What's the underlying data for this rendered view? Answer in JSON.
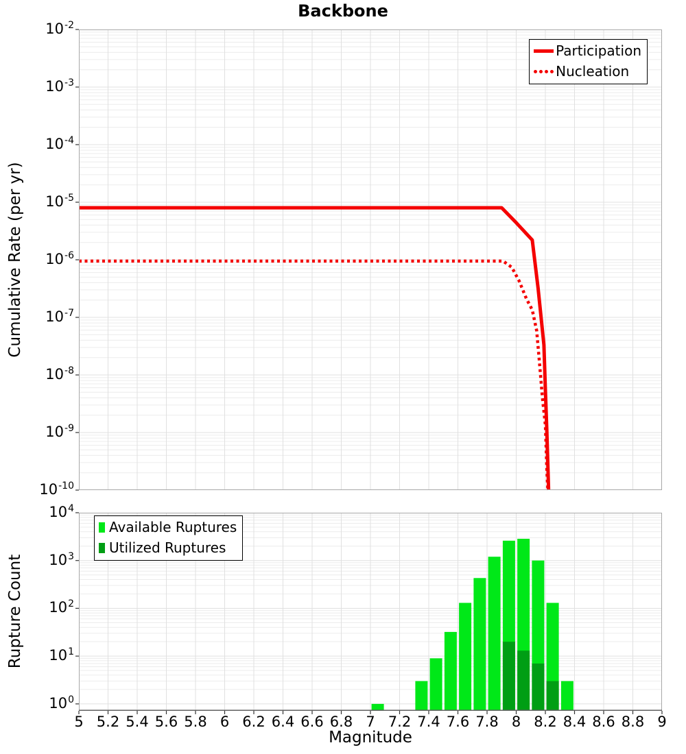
{
  "title": "Backbone",
  "colors": {
    "line_red": "#f40000",
    "available_green": "#00e818",
    "utilized_green": "#009e14",
    "grid_major": "#e0e0e0",
    "grid_minor": "#ececec",
    "plot_border": "#a8a8a8",
    "axis_line": "#606060",
    "tick": "#333333"
  },
  "chart_data": [
    {
      "type": "line",
      "title": "Backbone",
      "xlabel": "",
      "ylabel": "Cumulative Rate (per yr)",
      "xlim": [
        5,
        9
      ],
      "ylim": [
        1e-10,
        0.01
      ],
      "yscale": "log",
      "grid": "major+minor horizontal, vertical every 0.2 magnitude",
      "y_tick_exponents": [
        -2,
        -3,
        -4,
        -5,
        -6,
        -7,
        -8,
        -9,
        -10
      ],
      "legend": {
        "position": "top-right",
        "entries": [
          {
            "label": "Participation",
            "style": "solid",
            "color": "#f40000"
          },
          {
            "label": "Nucleation",
            "style": "dotted",
            "color": "#f40000"
          }
        ]
      },
      "series": [
        {
          "name": "Participation",
          "style": "solid",
          "color": "#f40000",
          "points": [
            [
              5.0,
              8e-06
            ],
            [
              7.9,
              8e-06
            ],
            [
              8.0,
              4.4e-06
            ],
            [
              8.11,
              2.2e-06
            ],
            [
              8.15,
              3.2e-07
            ],
            [
              8.19,
              3.3e-08
            ],
            [
              8.2,
              5.6e-09
            ],
            [
              8.21,
              1.1e-09
            ],
            [
              8.222,
              1e-10
            ]
          ]
        },
        {
          "name": "Nucleation",
          "style": "dotted",
          "color": "#f40000",
          "points": [
            [
              5.0,
              9.5e-07
            ],
            [
              7.91,
              9.5e-07
            ],
            [
              7.97,
              7.4e-07
            ],
            [
              8.02,
              4.3e-07
            ],
            [
              8.07,
              2.1e-07
            ],
            [
              8.11,
              1.35e-07
            ],
            [
              8.14,
              5.9e-08
            ],
            [
              8.16,
              1.6e-08
            ],
            [
              8.18,
              4e-09
            ],
            [
              8.2,
              1.35e-09
            ],
            [
              8.21,
              2.4e-10
            ],
            [
              8.217,
              1e-10
            ]
          ]
        }
      ]
    },
    {
      "type": "bar",
      "xlabel": "Magnitude",
      "ylabel": "Rupture Count",
      "xlim": [
        5,
        9
      ],
      "ylim": [
        1,
        10000
      ],
      "yscale": "log",
      "bin_width": 0.1,
      "y_tick_exponents": [
        4,
        3,
        2,
        1,
        0
      ],
      "x_tick_labels": [
        "5",
        "5.2",
        "5.4",
        "5.6",
        "5.8",
        "6",
        "6.2",
        "6.4",
        "6.6",
        "6.8",
        "7",
        "7.2",
        "7.4",
        "7.6",
        "7.8",
        "8",
        "8.2",
        "8.4",
        "8.6",
        "8.8",
        "9"
      ],
      "legend": {
        "position": "top-left",
        "entries": [
          {
            "label": "Available Ruptures",
            "color": "#00e818"
          },
          {
            "label": "Utilized Ruptures",
            "color": "#009e14"
          }
        ]
      },
      "series": [
        {
          "name": "Available Ruptures",
          "color": "#00e818",
          "bars": [
            [
              7.05,
              1
            ],
            [
              7.35,
              3
            ],
            [
              7.45,
              9
            ],
            [
              7.55,
              32
            ],
            [
              7.65,
              130
            ],
            [
              7.75,
              430
            ],
            [
              7.85,
              1200
            ],
            [
              7.95,
              2600
            ],
            [
              8.05,
              2850
            ],
            [
              8.15,
              1000
            ],
            [
              8.25,
              130
            ],
            [
              8.35,
              3
            ]
          ]
        },
        {
          "name": "Utilized Ruptures",
          "color": "#009e14",
          "bars": [
            [
              7.95,
              20
            ],
            [
              8.05,
              13
            ],
            [
              8.15,
              7
            ],
            [
              8.25,
              3
            ]
          ]
        }
      ]
    }
  ]
}
